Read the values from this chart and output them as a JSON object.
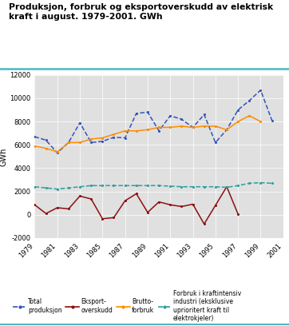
{
  "title_line1": "Produksjon, forbruk og eksportoverskudd av elektrisk",
  "title_line2": "kraft i august. 1979-2001. GWh",
  "ylabel": "GWh",
  "years": [
    1979,
    1980,
    1981,
    1982,
    1983,
    1984,
    1985,
    1986,
    1987,
    1988,
    1989,
    1990,
    1991,
    1992,
    1993,
    1994,
    1995,
    1996,
    1997,
    1998,
    1999,
    2000,
    2001
  ],
  "total_produksjon": [
    6700,
    6400,
    5300,
    6200,
    7900,
    6200,
    6300,
    6650,
    6600,
    8700,
    8800,
    7200,
    8500,
    8200,
    7500,
    8600,
    6200,
    7300,
    9000,
    9800,
    10700,
    8100,
    null
  ],
  "eksport_overskudd": [
    850,
    100,
    600,
    500,
    1600,
    1350,
    -350,
    -250,
    1200,
    1800,
    200,
    1100,
    850,
    700,
    900,
    -800,
    800,
    2400,
    50,
    null,
    null,
    null,
    null
  ],
  "brutto_forbruk": [
    5900,
    5700,
    5400,
    6200,
    6200,
    6500,
    6600,
    6900,
    7200,
    7200,
    7300,
    7500,
    7500,
    7600,
    7500,
    7600,
    7600,
    7300,
    8000,
    8500,
    8000,
    null,
    null
  ],
  "kraftintensiv": [
    2400,
    2300,
    2200,
    2300,
    2400,
    2500,
    2500,
    2500,
    2500,
    2500,
    2500,
    2500,
    2450,
    2400,
    2400,
    2400,
    2400,
    2350,
    2500,
    2700,
    2750,
    2700,
    null
  ],
  "ylim": [
    -2000,
    12000
  ],
  "yticks": [
    -2000,
    0,
    2000,
    4000,
    6000,
    8000,
    10000,
    12000
  ],
  "xtick_years": [
    1979,
    1981,
    1983,
    1985,
    1987,
    1989,
    1991,
    1993,
    1995,
    1997,
    1999,
    2001
  ],
  "color_produksjon": "#3355BB",
  "color_eksport": "#8B1010",
  "color_brutto": "#FF8C00",
  "color_kraftintensiv": "#2E9E9E",
  "teal_line_color": "#4DB8C0",
  "grid_color": "#FFFFFF",
  "bg_color": "#E0E0E0"
}
